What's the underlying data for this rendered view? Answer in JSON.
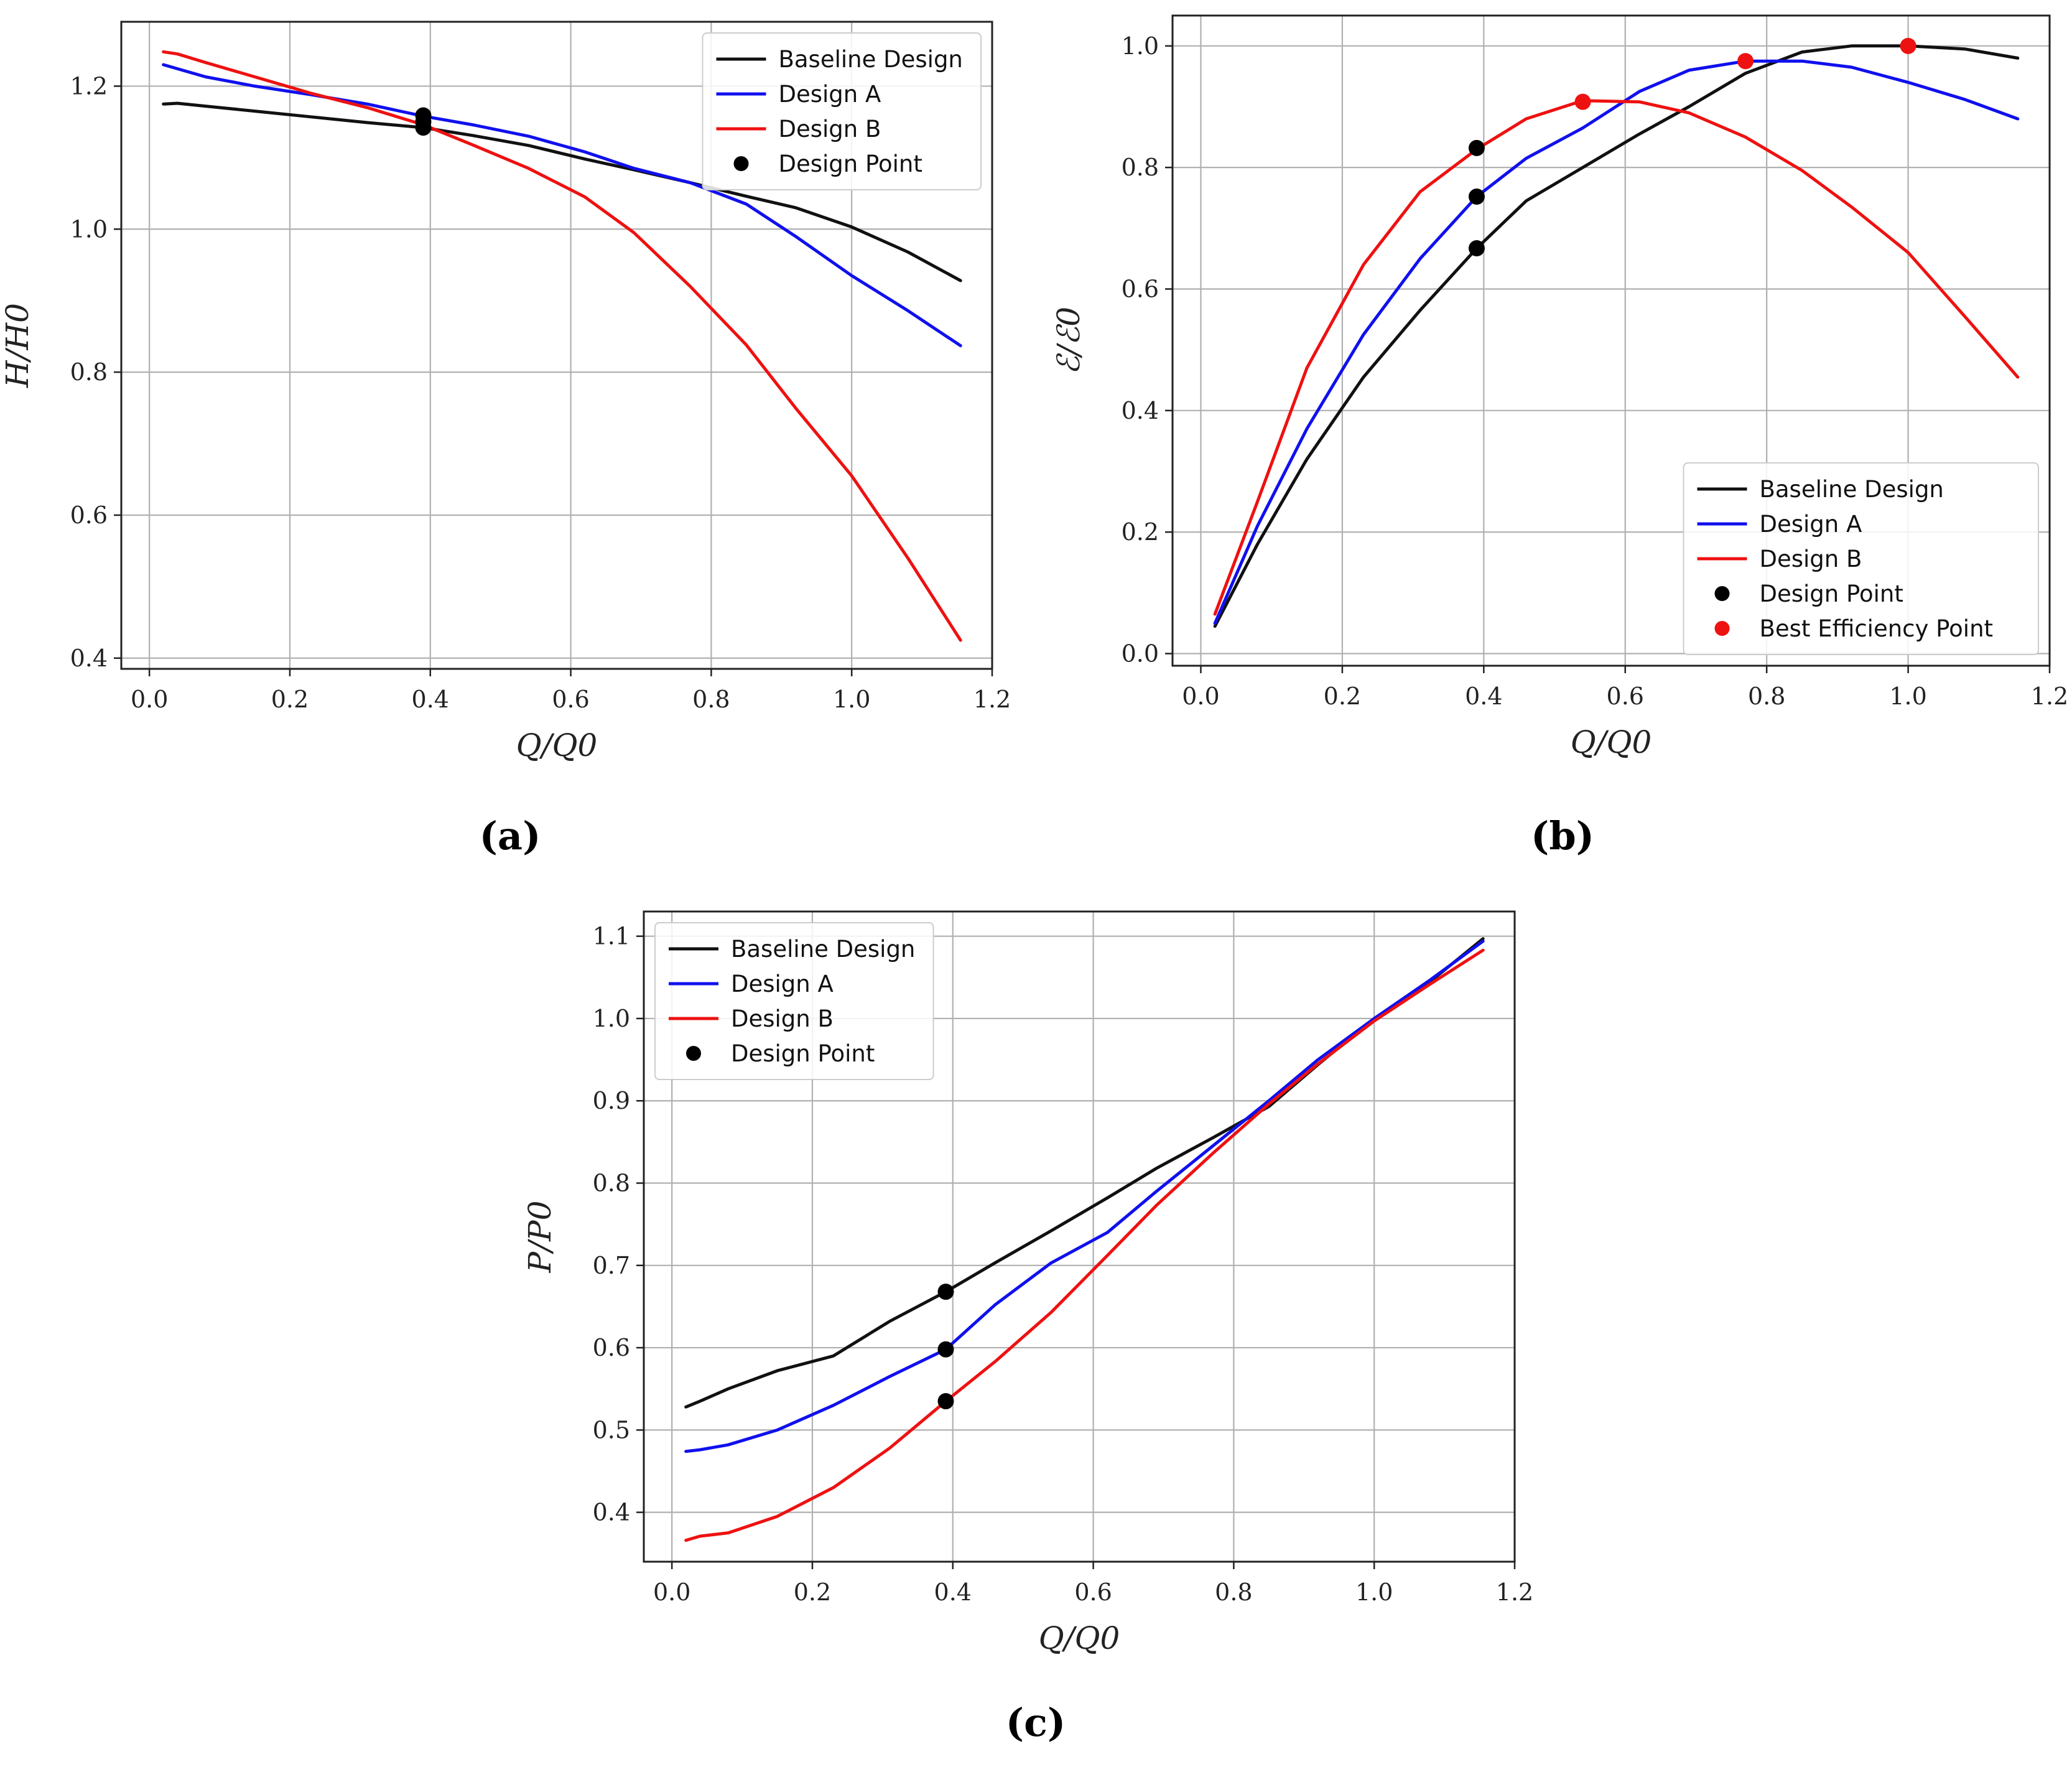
{
  "figure": {
    "panel_captions": [
      "(a)",
      "(b)",
      "(c)"
    ]
  },
  "colors": {
    "baseline": "#111111",
    "design_a": "#1010ee",
    "design_b": "#ee1111",
    "design_point": "#000000",
    "best_efficiency_point": "#ee1111"
  },
  "chart_data": [
    {
      "type": "line",
      "id": "a",
      "caption": "(a)",
      "xlabel": "Q/Q0",
      "ylabel": "H/H0",
      "xlim": [
        -0.04,
        1.2
      ],
      "ylim": [
        0.385,
        1.29
      ],
      "xticks": [
        0.0,
        0.2,
        0.4,
        0.6,
        0.8,
        1.0,
        1.2
      ],
      "xtick_labels": [
        "0.0",
        "0.2",
        "0.4",
        "0.6",
        "0.8",
        "1.0",
        "1.2"
      ],
      "yticks": [
        0.4,
        0.6,
        0.8,
        1.0,
        1.2
      ],
      "ytick_labels": [
        "0.4",
        "0.6",
        "0.8",
        "1.0",
        "1.2"
      ],
      "grid": true,
      "legend_position": "top-right",
      "legend": [
        "Baseline Design",
        "Design A",
        "Design B",
        "Design Point"
      ],
      "series": [
        {
          "name": "Baseline Design",
          "color_key": "baseline",
          "x": [
            0.02,
            0.04,
            0.08,
            0.15,
            0.23,
            0.31,
            0.39,
            0.46,
            0.54,
            0.62,
            0.69,
            0.77,
            0.85,
            0.92,
            1.0,
            1.08,
            1.155
          ],
          "y": [
            1.175,
            1.176,
            1.172,
            1.165,
            1.157,
            1.149,
            1.142,
            1.131,
            1.117,
            1.098,
            1.083,
            1.065,
            1.046,
            1.03,
            1.003,
            0.968,
            0.928
          ]
        },
        {
          "name": "Design A",
          "color_key": "design_a",
          "x": [
            0.02,
            0.08,
            0.15,
            0.23,
            0.31,
            0.39,
            0.46,
            0.54,
            0.62,
            0.69,
            0.77,
            0.85,
            0.92,
            1.0,
            1.08,
            1.155
          ],
          "y": [
            1.23,
            1.213,
            1.2,
            1.188,
            1.175,
            1.158,
            1.146,
            1.13,
            1.108,
            1.085,
            1.065,
            1.035,
            0.99,
            0.935,
            0.886,
            0.837
          ]
        },
        {
          "name": "Design B",
          "color_key": "design_b",
          "x": [
            0.02,
            0.04,
            0.08,
            0.15,
            0.23,
            0.31,
            0.39,
            0.46,
            0.54,
            0.62,
            0.69,
            0.77,
            0.85,
            0.92,
            1.0,
            1.08,
            1.155
          ],
          "y": [
            1.248,
            1.245,
            1.233,
            1.213,
            1.19,
            1.17,
            1.146,
            1.118,
            1.085,
            1.045,
            0.995,
            0.92,
            0.838,
            0.75,
            0.655,
            0.54,
            0.425
          ]
        }
      ],
      "markers": [
        {
          "label": "Design Point",
          "color_key": "design_point",
          "points": [
            [
              0.39,
              1.159
            ],
            [
              0.39,
              1.15
            ],
            [
              0.39,
              1.142
            ]
          ]
        }
      ]
    },
    {
      "type": "line",
      "id": "b",
      "caption": "(b)",
      "xlabel": "Q/Q0",
      "ylabel": "ℰ/ℰ0",
      "xlim": [
        -0.04,
        1.2
      ],
      "ylim": [
        -0.02,
        1.05
      ],
      "xticks": [
        0.0,
        0.2,
        0.4,
        0.6,
        0.8,
        1.0,
        1.2
      ],
      "xtick_labels": [
        "0.0",
        "0.2",
        "0.4",
        "0.6",
        "0.8",
        "1.0",
        "1.2"
      ],
      "yticks": [
        0.0,
        0.2,
        0.4,
        0.6,
        0.8,
        1.0
      ],
      "ytick_labels": [
        "0.0",
        "0.2",
        "0.4",
        "0.6",
        "0.8",
        "1.0"
      ],
      "grid": true,
      "legend_position": "bottom-right",
      "legend": [
        "Baseline Design",
        "Design A",
        "Design B",
        "Design Point",
        "Best Efficiency Point"
      ],
      "series": [
        {
          "name": "Baseline Design",
          "color_key": "baseline",
          "x": [
            0.02,
            0.08,
            0.15,
            0.23,
            0.31,
            0.39,
            0.46,
            0.54,
            0.62,
            0.69,
            0.77,
            0.85,
            0.92,
            1.0,
            1.08,
            1.155
          ],
          "y": [
            0.045,
            0.18,
            0.32,
            0.455,
            0.565,
            0.667,
            0.745,
            0.8,
            0.855,
            0.9,
            0.955,
            0.99,
            1.0,
            1.0,
            0.995,
            0.98
          ]
        },
        {
          "name": "Design A",
          "color_key": "design_a",
          "x": [
            0.02,
            0.08,
            0.15,
            0.23,
            0.31,
            0.39,
            0.46,
            0.54,
            0.62,
            0.69,
            0.77,
            0.85,
            0.92,
            1.0,
            1.08,
            1.155
          ],
          "y": [
            0.05,
            0.21,
            0.37,
            0.525,
            0.65,
            0.752,
            0.815,
            0.865,
            0.925,
            0.96,
            0.975,
            0.975,
            0.965,
            0.94,
            0.912,
            0.88
          ]
        },
        {
          "name": "Design B",
          "color_key": "design_b",
          "x": [
            0.02,
            0.08,
            0.15,
            0.23,
            0.31,
            0.39,
            0.46,
            0.54,
            0.62,
            0.69,
            0.77,
            0.85,
            0.92,
            1.0,
            1.08,
            1.155
          ],
          "y": [
            0.065,
            0.25,
            0.47,
            0.64,
            0.76,
            0.83,
            0.88,
            0.91,
            0.908,
            0.89,
            0.85,
            0.795,
            0.735,
            0.66,
            0.555,
            0.455
          ]
        }
      ],
      "markers": [
        {
          "label": "Design Point",
          "color_key": "design_point",
          "points": [
            [
              0.39,
              0.832
            ],
            [
              0.39,
              0.752
            ],
            [
              0.39,
              0.667
            ]
          ]
        },
        {
          "label": "Best Efficiency Point",
          "color_key": "best_efficiency_point",
          "points": [
            [
              0.54,
              0.908
            ],
            [
              0.77,
              0.975
            ],
            [
              1.0,
              1.0
            ]
          ]
        }
      ]
    },
    {
      "type": "line",
      "id": "c",
      "caption": "(c)",
      "xlabel": "Q/Q0",
      "ylabel": "P/P0",
      "xlim": [
        -0.04,
        1.2
      ],
      "ylim": [
        0.34,
        1.13
      ],
      "xticks": [
        0.0,
        0.2,
        0.4,
        0.6,
        0.8,
        1.0,
        1.2
      ],
      "xtick_labels": [
        "0.0",
        "0.2",
        "0.4",
        "0.6",
        "0.8",
        "1.0",
        "1.2"
      ],
      "yticks": [
        0.4,
        0.5,
        0.6,
        0.7,
        0.8,
        0.9,
        1.0,
        1.1
      ],
      "ytick_labels": [
        "0.4",
        "0.5",
        "0.6",
        "0.7",
        "0.8",
        "0.9",
        "1.0",
        "1.1"
      ],
      "grid": true,
      "legend_position": "top-left",
      "legend": [
        "Baseline Design",
        "Design A",
        "Design B",
        "Design Point"
      ],
      "series": [
        {
          "name": "Baseline Design",
          "color_key": "baseline",
          "x": [
            0.02,
            0.04,
            0.08,
            0.15,
            0.23,
            0.31,
            0.39,
            0.46,
            0.54,
            0.62,
            0.69,
            0.77,
            0.85,
            0.92,
            1.0,
            1.08,
            1.155
          ],
          "y": [
            0.528,
            0.535,
            0.55,
            0.572,
            0.59,
            0.632,
            0.668,
            0.703,
            0.742,
            0.782,
            0.818,
            0.855,
            0.893,
            0.944,
            1.0,
            1.045,
            1.097
          ]
        },
        {
          "name": "Design A",
          "color_key": "design_a",
          "x": [
            0.02,
            0.04,
            0.08,
            0.15,
            0.23,
            0.31,
            0.39,
            0.46,
            0.54,
            0.62,
            0.69,
            0.77,
            0.85,
            0.92,
            1.0,
            1.08,
            1.155
          ],
          "y": [
            0.474,
            0.476,
            0.482,
            0.5,
            0.53,
            0.565,
            0.598,
            0.652,
            0.703,
            0.74,
            0.79,
            0.845,
            0.9,
            0.95,
            1.0,
            1.047,
            1.094
          ]
        },
        {
          "name": "Design B",
          "color_key": "design_b",
          "x": [
            0.02,
            0.04,
            0.08,
            0.15,
            0.23,
            0.31,
            0.39,
            0.46,
            0.54,
            0.62,
            0.69,
            0.77,
            0.85,
            0.92,
            1.0,
            1.08,
            1.155
          ],
          "y": [
            0.366,
            0.371,
            0.375,
            0.395,
            0.43,
            0.478,
            0.535,
            0.583,
            0.643,
            0.712,
            0.773,
            0.836,
            0.896,
            0.945,
            0.997,
            1.042,
            1.083
          ]
        }
      ],
      "markers": [
        {
          "label": "Design Point",
          "color_key": "design_point",
          "points": [
            [
              0.39,
              0.668
            ],
            [
              0.39,
              0.598
            ],
            [
              0.39,
              0.535
            ]
          ]
        }
      ]
    }
  ]
}
